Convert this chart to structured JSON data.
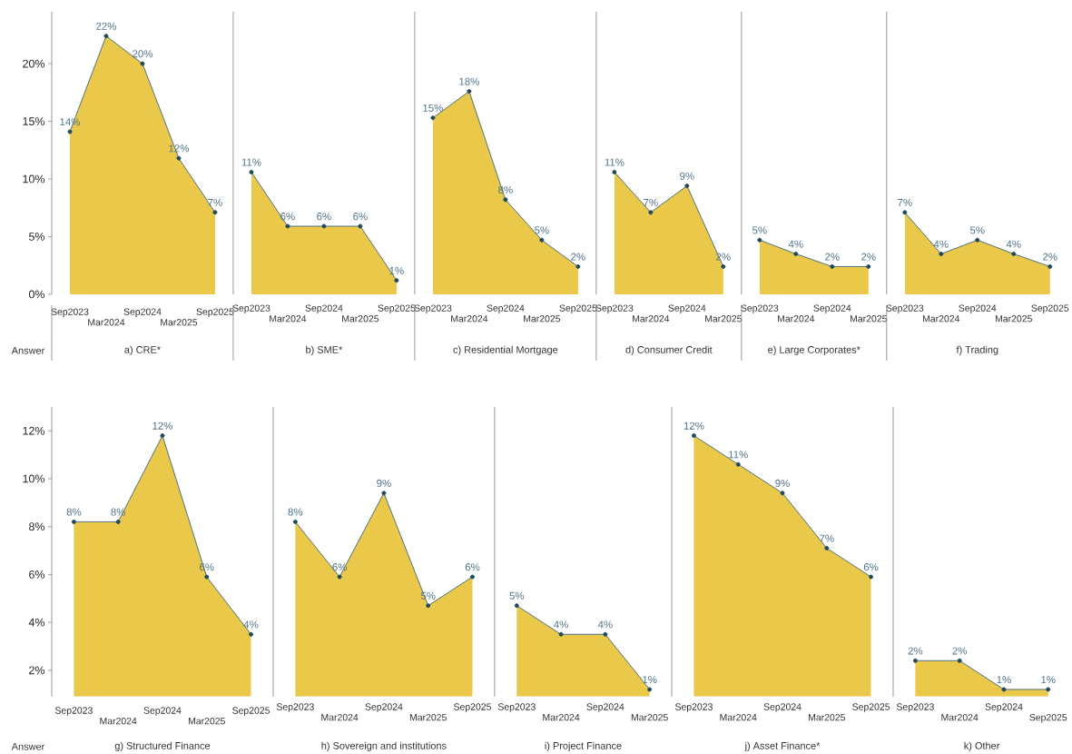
{
  "chart_data": [
    {
      "type": "area",
      "xlabel": "a) CRE*",
      "annotations": [
        "Answer"
      ],
      "categories": [
        "Sep2023",
        "Mar2024",
        "Sep2024",
        "Mar2025",
        "Sep2025"
      ],
      "values": [
        14.1,
        22.4,
        20.0,
        11.8,
        7.1
      ],
      "value_labels": [
        "14%",
        "22%",
        "20%",
        "12%",
        "7%"
      ],
      "color": "#e9c84a",
      "marker": "circle",
      "ylim": [
        0,
        24.5
      ],
      "yticks": [
        {
          "value": 0,
          "label": "0%"
        },
        {
          "value": 5,
          "label": "5%"
        },
        {
          "value": 10,
          "label": "10%"
        },
        {
          "value": 15,
          "label": "15%"
        },
        {
          "value": 20,
          "label": "20%"
        }
      ]
    },
    {
      "type": "area",
      "xlabel": "b) SME*",
      "categories": [
        "Sep2023",
        "Mar2024",
        "Sep2024",
        "Mar2025",
        "Sep2025"
      ],
      "values": [
        10.6,
        5.9,
        5.9,
        5.9,
        1.2
      ],
      "value_labels": [
        "11%",
        "6%",
        "6%",
        "6%",
        "1%"
      ],
      "color": "#e9c84a",
      "marker": "circle",
      "ylim": [
        0,
        24.5
      ],
      "tick_labels": "x"
    },
    {
      "type": "area",
      "xlabel": "c) Residential Mortgage",
      "categories": [
        "Sep2023",
        "Mar2024",
        "Sep2024",
        "Mar2025",
        "Sep2025"
      ],
      "values": [
        15.3,
        17.6,
        8.2,
        4.7,
        2.4
      ],
      "value_labels": [
        "15%",
        "18%",
        "8%",
        "5%",
        "2%"
      ],
      "color": "#e9c84a",
      "marker": "circle",
      "ylim": [
        0,
        24.5
      ],
      "tick_labels": "x"
    },
    {
      "type": "area",
      "xlabel": "d) Consumer Credit",
      "categories": [
        "Sep2023",
        "Mar2024",
        "Sep2024",
        "Mar2025"
      ],
      "values": [
        10.6,
        7.1,
        9.4,
        2.4
      ],
      "value_labels": [
        "11%",
        "7%",
        "9%",
        "2%"
      ],
      "color": "#e9c84a",
      "marker": "circle",
      "ylim": [
        0,
        24.5
      ],
      "tick_labels": "x"
    },
    {
      "type": "area",
      "xlabel": "e) Large Corporates*",
      "categories": [
        "Sep2023",
        "Mar2024",
        "Sep2024",
        "Mar2025"
      ],
      "values": [
        4.7,
        3.5,
        2.4,
        2.4
      ],
      "value_labels": [
        "5%",
        "4%",
        "2%",
        "2%"
      ],
      "color": "#e9c84a",
      "marker": "circle",
      "ylim": [
        0,
        24.5
      ],
      "tick_labels": "x"
    },
    {
      "type": "area",
      "xlabel": "f) Trading",
      "categories": [
        "Sep2023",
        "Mar2024",
        "Sep2024",
        "Mar2025",
        "Sep2025"
      ],
      "values": [
        7.1,
        3.5,
        4.7,
        3.5,
        2.4
      ],
      "value_labels": [
        "7%",
        "4%",
        "5%",
        "4%",
        "2%"
      ],
      "color": "#e9c84a",
      "marker": "circle",
      "ylim": [
        0,
        24.5
      ],
      "tick_labels": "x"
    },
    {
      "type": "area",
      "xlabel": "g) Structured Finance",
      "annotations": [
        "Answer"
      ],
      "categories": [
        "Sep2023",
        "Mar2024",
        "Sep2024",
        "Mar2025",
        "Sep2025"
      ],
      "values": [
        8.2,
        8.2,
        11.8,
        5.9,
        3.5
      ],
      "value_labels": [
        "8%",
        "8%",
        "12%",
        "6%",
        "4%"
      ],
      "color": "#e9c84a",
      "marker": "circle",
      "ylim": [
        0.9,
        13
      ],
      "yticks": [
        {
          "value": 2,
          "label": "2%"
        },
        {
          "value": 4,
          "label": "4%"
        },
        {
          "value": 6,
          "label": "6%"
        },
        {
          "value": 8,
          "label": "8%"
        },
        {
          "value": 10,
          "label": "10%"
        },
        {
          "value": 12,
          "label": "12%"
        }
      ]
    },
    {
      "type": "area",
      "xlabel": "h) Sovereign and institutions",
      "categories": [
        "Sep2023",
        "Mar2024",
        "Sep2024",
        "Mar2025",
        "Sep2025"
      ],
      "values": [
        8.2,
        5.9,
        9.4,
        4.7,
        5.9
      ],
      "value_labels": [
        "8%",
        "6%",
        "9%",
        "5%",
        "6%"
      ],
      "color": "#e9c84a",
      "marker": "circle",
      "ylim": [
        0.9,
        13
      ],
      "tick_labels": "x"
    },
    {
      "type": "area",
      "xlabel": "i) Project Finance",
      "categories": [
        "Sep2023",
        "Mar2024",
        "Sep2024",
        "Mar2025"
      ],
      "values": [
        4.7,
        3.5,
        3.5,
        1.2
      ],
      "value_labels": [
        "5%",
        "4%",
        "4%",
        "1%"
      ],
      "color": "#e9c84a",
      "marker": "circle",
      "ylim": [
        0.9,
        13
      ],
      "tick_labels": "x"
    },
    {
      "type": "area",
      "xlabel": "j) Asset Finance*",
      "categories": [
        "Sep2023",
        "Mar2024",
        "Sep2024",
        "Mar2025",
        "Sep2025"
      ],
      "values": [
        11.8,
        10.6,
        9.4,
        7.1,
        5.9
      ],
      "value_labels": [
        "12%",
        "11%",
        "9%",
        "7%",
        "6%"
      ],
      "color": "#e9c84a",
      "marker": "circle",
      "ylim": [
        0.9,
        13
      ],
      "tick_labels": "x"
    },
    {
      "type": "area",
      "xlabel": "k) Other",
      "categories": [
        "Sep2023",
        "Mar2024",
        "Sep2024",
        "Sep2025"
      ],
      "values": [
        2.4,
        2.4,
        1.2,
        1.2
      ],
      "value_labels": [
        "2%",
        "2%",
        "1%",
        "1%"
      ],
      "color": "#e9c84a",
      "marker": "circle",
      "ylim": [
        0.9,
        13
      ],
      "tick_labels": "x"
    }
  ]
}
